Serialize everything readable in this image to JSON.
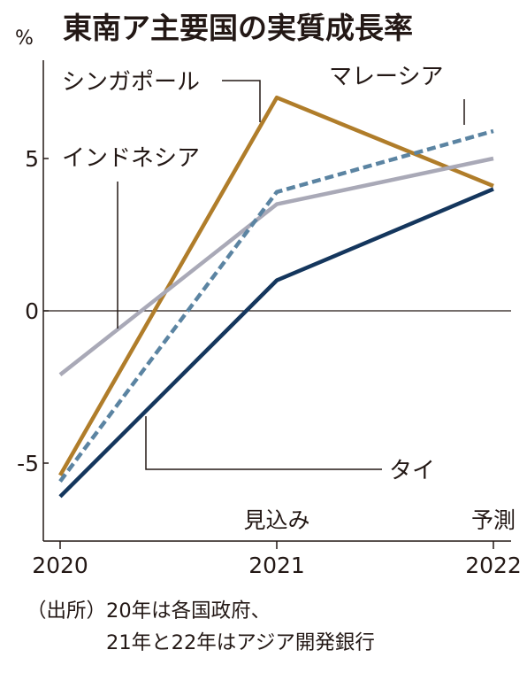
{
  "title": "東南ア主要国の実質成長率",
  "source_line1": "（出所）20年は各国政府、",
  "source_line2": "21年と22年はアジア開発銀行",
  "chart_data": {
    "type": "line",
    "title": "東南ア主要国の実質成長率",
    "ylabel": "%",
    "xlabel": "",
    "x": [
      "2020",
      "2021",
      "2022"
    ],
    "x_annotations": [
      {
        "x": "2021",
        "text": "見込み"
      },
      {
        "x": "2022",
        "text": "予測"
      }
    ],
    "y_ticks": [
      {
        "value": 5,
        "label": "5"
      },
      {
        "value": 0,
        "label": "0"
      },
      {
        "value": -5,
        "label": "-5"
      }
    ],
    "ylim": [
      -7.5,
      9.5
    ],
    "grid": false,
    "zero_line": true,
    "legend": "direct labels",
    "series": [
      {
        "name": "シンガポール",
        "values": [
          -5.4,
          7.0,
          4.1
        ],
        "color": "#b07d2a",
        "style": "solid"
      },
      {
        "name": "マレーシア",
        "values": [
          -5.6,
          3.9,
          5.9
        ],
        "color": "#5b84a2",
        "style": "dashed"
      },
      {
        "name": "インドネシア",
        "values": [
          -2.1,
          3.5,
          5.0
        ],
        "color": "#a9a9b7",
        "style": "solid"
      },
      {
        "name": "タイ",
        "values": [
          -6.1,
          1.0,
          4.0
        ],
        "color": "#14365d",
        "style": "solid"
      }
    ]
  }
}
